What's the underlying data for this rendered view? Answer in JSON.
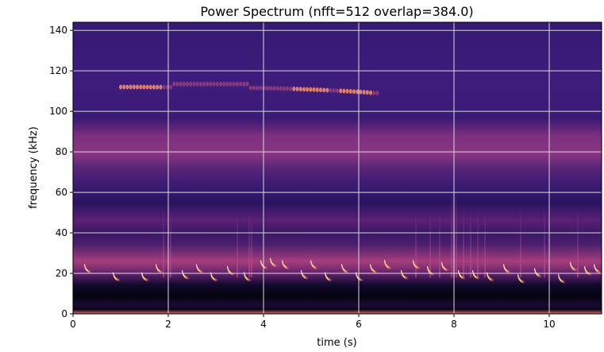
{
  "chart_data": {
    "type": "heatmap",
    "title": "Power Spectrum (nfft=512 overlap=384.0)",
    "xlabel": "time (s)",
    "ylabel": "frequency (kHz)",
    "xlim": [
      0,
      11.1
    ],
    "ylim": [
      0,
      144
    ],
    "xticks": [
      0,
      2,
      4,
      6,
      8,
      10
    ],
    "yticks": [
      0,
      20,
      40,
      60,
      80,
      100,
      120,
      140
    ],
    "grid": true,
    "colormap": "magma",
    "colors": {
      "background_high": "#3d1a78",
      "background_mid": "#2c1566",
      "background_low": "#140a2e",
      "band_bright": "#b8457a",
      "call_peak": "#fff4c0",
      "low_dark": "#05030f",
      "bottom_strip": "#e46a5a",
      "grid": "#d9d9d9"
    },
    "bands": [
      {
        "name": "ultrasonic tonal trace",
        "t_start": 1.0,
        "t_end": 6.4,
        "f_start": 112,
        "f_end": 109
      },
      {
        "name": "broadband band",
        "f_low": 74,
        "f_high": 88
      },
      {
        "name": "broadband band",
        "f_low": 52,
        "f_high": 62
      },
      {
        "name": "low-frequency energy band",
        "f_low": 18,
        "f_high": 34
      }
    ],
    "calls": [
      {
        "t": 0.25,
        "f": 22
      },
      {
        "t": 0.85,
        "f": 18
      },
      {
        "t": 1.45,
        "f": 18
      },
      {
        "t": 1.75,
        "f": 22
      },
      {
        "t": 2.3,
        "f": 19
      },
      {
        "t": 2.6,
        "f": 22
      },
      {
        "t": 2.9,
        "f": 18
      },
      {
        "t": 3.25,
        "f": 21
      },
      {
        "t": 3.6,
        "f": 18
      },
      {
        "t": 3.95,
        "f": 24
      },
      {
        "t": 4.15,
        "f": 25
      },
      {
        "t": 4.4,
        "f": 24
      },
      {
        "t": 4.8,
        "f": 19
      },
      {
        "t": 5.0,
        "f": 24
      },
      {
        "t": 5.3,
        "f": 18
      },
      {
        "t": 5.65,
        "f": 22
      },
      {
        "t": 5.95,
        "f": 18
      },
      {
        "t": 6.25,
        "f": 22
      },
      {
        "t": 6.55,
        "f": 24
      },
      {
        "t": 6.9,
        "f": 19
      },
      {
        "t": 7.15,
        "f": 24
      },
      {
        "t": 7.45,
        "f": 21
      },
      {
        "t": 7.75,
        "f": 23
      },
      {
        "t": 8.1,
        "f": 19
      },
      {
        "t": 8.4,
        "f": 19
      },
      {
        "t": 8.7,
        "f": 18
      },
      {
        "t": 9.05,
        "f": 22
      },
      {
        "t": 9.35,
        "f": 17
      },
      {
        "t": 9.7,
        "f": 20
      },
      {
        "t": 10.2,
        "f": 17
      },
      {
        "t": 10.45,
        "f": 23
      },
      {
        "t": 10.75,
        "f": 21
      },
      {
        "t": 10.95,
        "f": 22
      }
    ]
  }
}
